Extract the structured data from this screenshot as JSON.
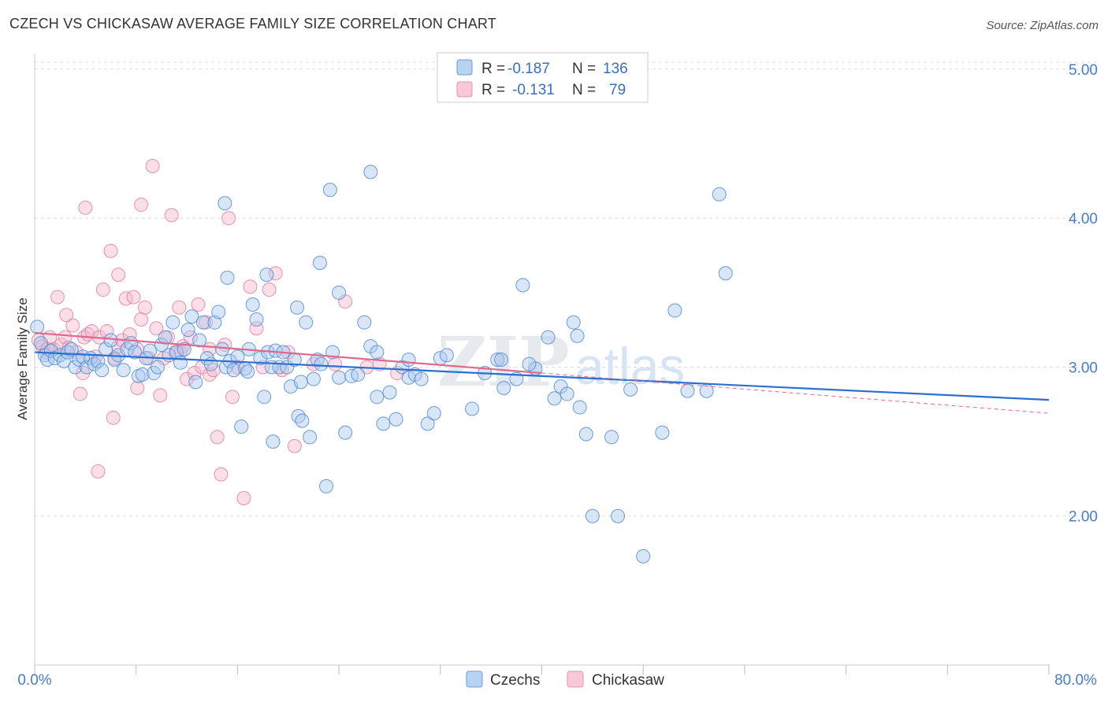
{
  "title": "CZECH VS CHICKASAW AVERAGE FAMILY SIZE CORRELATION CHART",
  "source": "Source: ZipAtlas.com",
  "watermark": {
    "main": "ZIP",
    "sub": "atlas"
  },
  "colors": {
    "czech_fill": "#a8c8f0",
    "czech_stroke": "#4a86d0",
    "czech_line": "#2b6fd0",
    "chick_fill": "#f5b8cc",
    "chick_stroke": "#e07ba0",
    "chick_line": "#e0688f",
    "axis_text": "#4a7cc4",
    "grid": "#dddddd"
  },
  "legend": {
    "rows": [
      {
        "r_label": "R =",
        "r_value": "-0.187",
        "n_label": "N =",
        "n_value": "136"
      },
      {
        "r_label": "R =",
        "r_value": "-0.131",
        "n_label": "N =",
        "n_value": "79"
      }
    ]
  },
  "bottom_legend": [
    "Czechs",
    "Chickasaw"
  ],
  "chart_data": {
    "type": "scatter",
    "xlabel": "",
    "ylabel": "Average Family Size",
    "xlim": [
      0,
      80
    ],
    "ylim": [
      1.0,
      5.1
    ],
    "x_tick_labels": [
      "0.0%",
      "80.0%"
    ],
    "y_ticks": [
      2.0,
      3.0,
      4.0,
      5.0
    ],
    "y_tick_labels": [
      "2.00",
      "3.00",
      "4.00",
      "5.00"
    ],
    "grid": true,
    "legend_position": "top-center",
    "series": [
      {
        "name": "Czechs",
        "trend": {
          "x": [
            0,
            80
          ],
          "y": [
            3.1,
            2.78
          ]
        },
        "points": [
          [
            0.2,
            3.27
          ],
          [
            0.5,
            3.16
          ],
          [
            0.8,
            3.08
          ],
          [
            1.0,
            3.05
          ],
          [
            1.3,
            3.11
          ],
          [
            1.6,
            3.06
          ],
          [
            2.0,
            3.08
          ],
          [
            2.3,
            3.04
          ],
          [
            2.6,
            3.1
          ],
          [
            2.9,
            3.12
          ],
          [
            3.2,
            3.0
          ],
          [
            3.5,
            3.05
          ],
          [
            3.8,
            3.07
          ],
          [
            4.1,
            3.0
          ],
          [
            4.4,
            3.06
          ],
          [
            4.7,
            3.02
          ],
          [
            5.0,
            3.04
          ],
          [
            5.3,
            2.98
          ],
          [
            5.6,
            3.12
          ],
          [
            6.0,
            3.18
          ],
          [
            6.3,
            3.05
          ],
          [
            6.6,
            3.08
          ],
          [
            7.0,
            2.98
          ],
          [
            7.3,
            3.12
          ],
          [
            7.6,
            3.16
          ],
          [
            7.9,
            3.1
          ],
          [
            8.2,
            2.94
          ],
          [
            8.5,
            2.95
          ],
          [
            8.8,
            3.06
          ],
          [
            9.1,
            3.11
          ],
          [
            9.4,
            2.96
          ],
          [
            9.7,
            3.0
          ],
          [
            10.0,
            3.15
          ],
          [
            10.3,
            3.2
          ],
          [
            10.6,
            3.08
          ],
          [
            10.9,
            3.3
          ],
          [
            11.2,
            3.1
          ],
          [
            11.5,
            3.03
          ],
          [
            11.8,
            3.12
          ],
          [
            12.1,
            3.25
          ],
          [
            12.4,
            3.34
          ],
          [
            12.7,
            2.9
          ],
          [
            13.0,
            3.18
          ],
          [
            13.3,
            3.3
          ],
          [
            13.6,
            3.06
          ],
          [
            13.9,
            3.02
          ],
          [
            14.2,
            3.3
          ],
          [
            14.5,
            3.37
          ],
          [
            14.8,
            3.12
          ],
          [
            15.1,
            3.0
          ],
          [
            15.4,
            3.04
          ],
          [
            15.7,
            2.98
          ],
          [
            16.0,
            3.07
          ],
          [
            16.3,
            2.6
          ],
          [
            16.6,
            2.99
          ],
          [
            16.9,
            3.12
          ],
          [
            17.2,
            3.42
          ],
          [
            17.5,
            3.32
          ],
          [
            17.8,
            3.06
          ],
          [
            18.1,
            2.8
          ],
          [
            18.4,
            3.1
          ],
          [
            18.7,
            3.0
          ],
          [
            19.0,
            3.11
          ],
          [
            19.3,
            3.0
          ],
          [
            19.6,
            3.1
          ],
          [
            19.9,
            3.0
          ],
          [
            20.2,
            2.87
          ],
          [
            20.5,
            3.05
          ],
          [
            20.8,
            2.67
          ],
          [
            21.1,
            2.64
          ],
          [
            21.4,
            3.3
          ],
          [
            21.7,
            2.53
          ],
          [
            22.0,
            2.92
          ],
          [
            22.3,
            3.05
          ],
          [
            22.6,
            3.02
          ],
          [
            23.0,
            2.2
          ],
          [
            23.5,
            3.1
          ],
          [
            24.0,
            2.93
          ],
          [
            24.5,
            2.56
          ],
          [
            25.0,
            2.94
          ],
          [
            25.5,
            2.95
          ],
          [
            26.0,
            3.3
          ],
          [
            26.5,
            3.14
          ],
          [
            27.0,
            2.8
          ],
          [
            27.5,
            2.62
          ],
          [
            28.0,
            2.83
          ],
          [
            28.5,
            2.65
          ],
          [
            29.0,
            3.0
          ],
          [
            29.5,
            2.93
          ],
          [
            30.0,
            2.95
          ],
          [
            30.5,
            2.92
          ],
          [
            31.0,
            2.62
          ],
          [
            31.5,
            2.69
          ],
          [
            32.0,
            3.06
          ],
          [
            32.5,
            3.08
          ],
          [
            24.0,
            3.5
          ],
          [
            22.5,
            3.7
          ],
          [
            26.5,
            4.31
          ],
          [
            15.0,
            4.1
          ],
          [
            15.2,
            3.6
          ],
          [
            18.3,
            3.62
          ],
          [
            18.8,
            2.5
          ],
          [
            21.0,
            2.9
          ],
          [
            23.3,
            4.19
          ],
          [
            29.5,
            3.05
          ],
          [
            34.5,
            2.72
          ],
          [
            35.5,
            2.96
          ],
          [
            36.5,
            3.05
          ],
          [
            37.0,
            2.86
          ],
          [
            38.0,
            2.92
          ],
          [
            38.5,
            3.55
          ],
          [
            39.5,
            2.99
          ],
          [
            40.5,
            3.2
          ],
          [
            41.5,
            2.87
          ],
          [
            42.0,
            2.82
          ],
          [
            42.5,
            3.3
          ],
          [
            43.0,
            2.73
          ],
          [
            43.5,
            2.55
          ],
          [
            44.0,
            2.0
          ],
          [
            45.5,
            2.53
          ],
          [
            46.0,
            2.0
          ],
          [
            47.0,
            2.85
          ],
          [
            48.0,
            1.73
          ],
          [
            49.5,
            2.56
          ],
          [
            50.5,
            3.38
          ],
          [
            51.5,
            2.84
          ],
          [
            53.0,
            2.84
          ],
          [
            54.0,
            4.16
          ],
          [
            54.5,
            3.63
          ],
          [
            39.0,
            3.02
          ],
          [
            41.0,
            2.79
          ],
          [
            42.8,
            3.21
          ],
          [
            36.8,
            3.05
          ],
          [
            27.0,
            3.1
          ],
          [
            20.7,
            3.4
          ],
          [
            16.8,
            2.97
          ]
        ]
      },
      {
        "name": "Chickasaw",
        "trend": {
          "x": [
            0,
            40
          ],
          "y": [
            3.23,
            2.96
          ]
        },
        "trend_dashed": {
          "x": [
            40,
            80
          ],
          "y": [
            2.96,
            2.69
          ]
        },
        "points": [
          [
            0.3,
            3.18
          ],
          [
            0.6,
            3.14
          ],
          [
            0.9,
            3.1
          ],
          [
            1.2,
            3.2
          ],
          [
            1.5,
            3.12
          ],
          [
            1.8,
            3.47
          ],
          [
            2.1,
            3.15
          ],
          [
            2.4,
            3.2
          ],
          [
            2.7,
            3.13
          ],
          [
            3.0,
            3.28
          ],
          [
            3.3,
            3.1
          ],
          [
            3.6,
            2.82
          ],
          [
            3.9,
            3.2
          ],
          [
            4.2,
            3.22
          ],
          [
            4.5,
            3.24
          ],
          [
            4.8,
            3.07
          ],
          [
            5.1,
            3.2
          ],
          [
            5.4,
            3.52
          ],
          [
            5.7,
            3.24
          ],
          [
            6.0,
            3.78
          ],
          [
            6.3,
            3.06
          ],
          [
            6.6,
            3.14
          ],
          [
            6.9,
            3.18
          ],
          [
            7.2,
            3.46
          ],
          [
            7.5,
            3.22
          ],
          [
            7.8,
            3.47
          ],
          [
            8.1,
            3.12
          ],
          [
            8.4,
            3.32
          ],
          [
            8.7,
            3.4
          ],
          [
            9.0,
            3.06
          ],
          [
            9.3,
            4.35
          ],
          [
            9.6,
            3.26
          ],
          [
            9.9,
            2.81
          ],
          [
            10.2,
            3.06
          ],
          [
            10.5,
            3.2
          ],
          [
            10.8,
            4.02
          ],
          [
            11.1,
            3.1
          ],
          [
            11.4,
            3.4
          ],
          [
            11.7,
            3.14
          ],
          [
            12.0,
            2.92
          ],
          [
            12.3,
            3.2
          ],
          [
            12.6,
            2.96
          ],
          [
            12.9,
            3.42
          ],
          [
            13.2,
            3.0
          ],
          [
            13.5,
            3.3
          ],
          [
            13.8,
            2.95
          ],
          [
            14.1,
            2.98
          ],
          [
            14.4,
            2.53
          ],
          [
            14.7,
            2.28
          ],
          [
            15.0,
            3.15
          ],
          [
            15.3,
            4.0
          ],
          [
            15.6,
            2.8
          ],
          [
            16.0,
            3.0
          ],
          [
            16.5,
            2.12
          ],
          [
            17.0,
            3.54
          ],
          [
            17.5,
            3.26
          ],
          [
            18.0,
            3.0
          ],
          [
            18.5,
            3.52
          ],
          [
            19.0,
            3.63
          ],
          [
            19.5,
            2.98
          ],
          [
            20.0,
            3.1
          ],
          [
            20.5,
            2.47
          ],
          [
            4.0,
            4.07
          ],
          [
            6.6,
            3.62
          ],
          [
            8.4,
            4.09
          ],
          [
            5.0,
            2.3
          ],
          [
            6.2,
            2.66
          ],
          [
            8.1,
            2.86
          ],
          [
            11.5,
            3.1
          ],
          [
            2.5,
            3.35
          ],
          [
            3.8,
            2.96
          ],
          [
            1.0,
            3.12
          ],
          [
            13.8,
            3.12
          ],
          [
            23.7,
            3.02
          ],
          [
            26.2,
            3.0
          ],
          [
            28.6,
            2.96
          ],
          [
            24.5,
            3.44
          ],
          [
            22.0,
            3.02
          ],
          [
            27.2,
            3.02
          ]
        ]
      }
    ]
  }
}
